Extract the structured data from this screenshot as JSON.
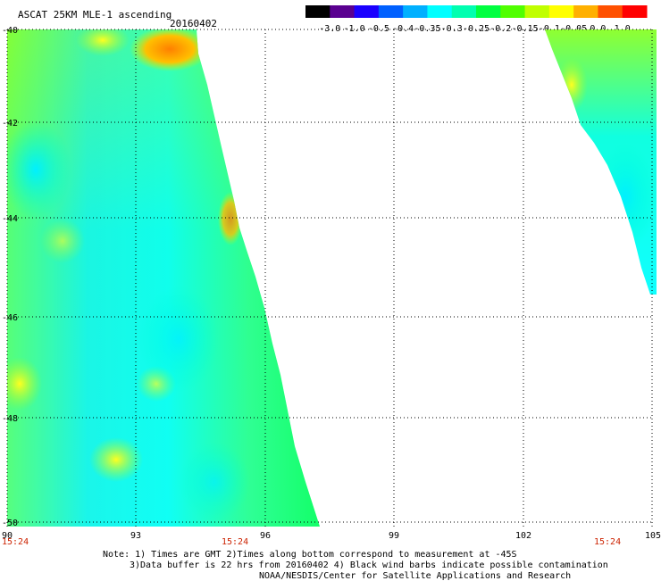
{
  "header": {
    "title": "ASCAT 25KM MLE-1 ascending",
    "date": "20160402"
  },
  "colorbar": {
    "labels": [
      "-3.0",
      "-1.0",
      "-0.5",
      "-0.4",
      "-0.35",
      "-0.3",
      "-0.25",
      "-0.2",
      "-0.15",
      "-0.1",
      "-0.05",
      "0.0",
      "1.0"
    ],
    "colors": [
      "#000000",
      "#5a0090",
      "#1a00ff",
      "#0060ff",
      "#00b0ff",
      "#00ffff",
      "#00ffb0",
      "#00ff40",
      "#50ff00",
      "#c0ff00",
      "#ffff00",
      "#ffb000",
      "#ff5000",
      "#ff0000"
    ]
  },
  "map": {
    "lon_ticks": [
      "90",
      "93",
      "96",
      "99",
      "102",
      "105"
    ],
    "lat_ticks": [
      "-40",
      "-42",
      "-44",
      "-46",
      "-48",
      "-50"
    ],
    "times": [
      "15:24",
      "15:24",
      "15:24"
    ]
  },
  "notes": {
    "line1": "Note: 1) Times are GMT 2)Times along bottom correspond to measurement at -45S",
    "line2": "3)Data buffer is 22 hrs from 20160402 4) Black wind barbs indicate possible contamination",
    "line3": "NOAA/NESDIS/Center for Satellite Applications and Research"
  }
}
